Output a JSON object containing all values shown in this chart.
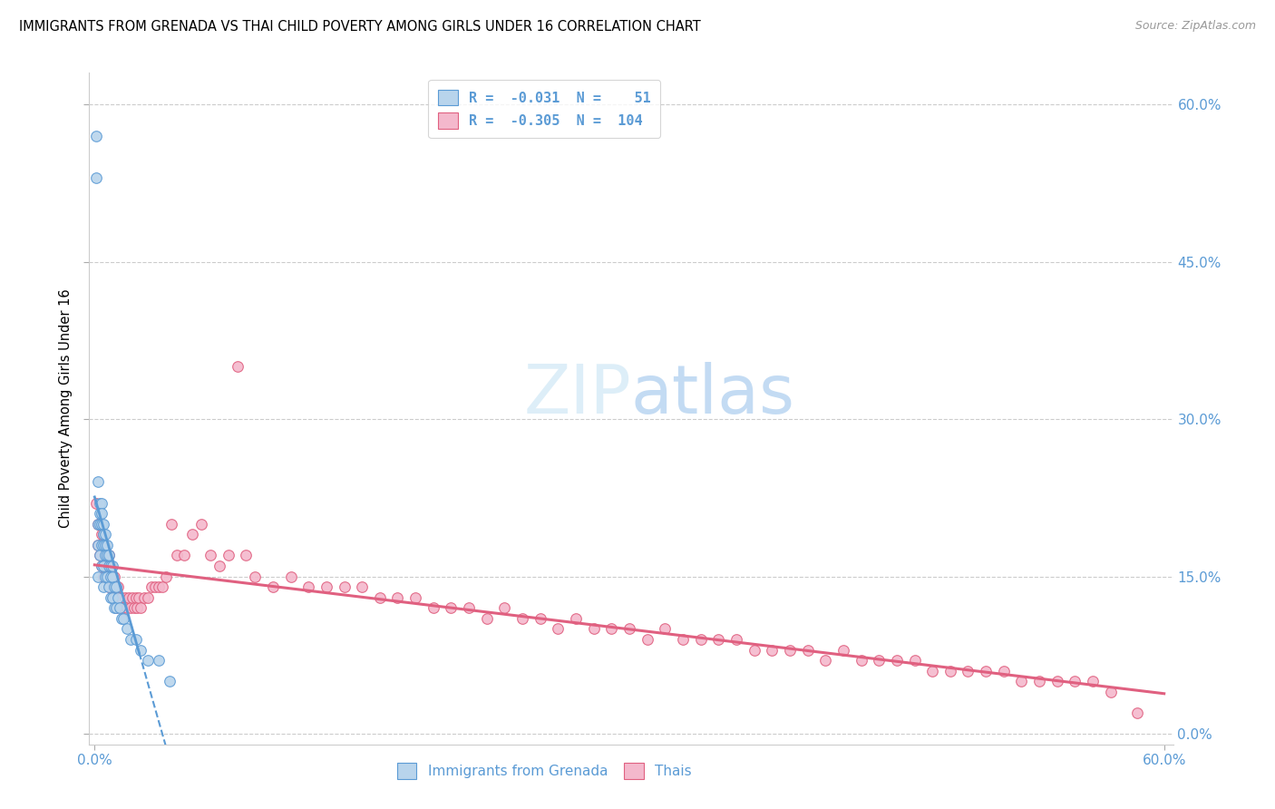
{
  "title": "IMMIGRANTS FROM GRENADA VS THAI CHILD POVERTY AMONG GIRLS UNDER 16 CORRELATION CHART",
  "source": "Source: ZipAtlas.com",
  "ylabel": "Child Poverty Among Girls Under 16",
  "xlim_min": -0.003,
  "xlim_max": 0.605,
  "ylim_min": -0.01,
  "ylim_max": 0.63,
  "yticks": [
    0.0,
    0.15,
    0.3,
    0.45,
    0.6
  ],
  "ytick_labels_right": [
    "0.0%",
    "15.0%",
    "30.0%",
    "45.0%",
    "60.0%"
  ],
  "xtick_vals": [
    0.0,
    0.6
  ],
  "xtick_labels": [
    "0.0%",
    "60.0%"
  ],
  "color_grenada_fill": "#b8d4ec",
  "color_grenada_edge": "#5b9bd5",
  "color_thais_fill": "#f4b8cc",
  "color_thais_edge": "#e06080",
  "color_grenada_line": "#5b9bd5",
  "color_thais_line": "#e06080",
  "watermark_color": "#ddeef8",
  "background_color": "#ffffff",
  "grenada_x": [
    0.001,
    0.001,
    0.002,
    0.002,
    0.002,
    0.002,
    0.003,
    0.003,
    0.003,
    0.003,
    0.004,
    0.004,
    0.004,
    0.004,
    0.004,
    0.005,
    0.005,
    0.005,
    0.005,
    0.005,
    0.006,
    0.006,
    0.006,
    0.006,
    0.007,
    0.007,
    0.007,
    0.008,
    0.008,
    0.008,
    0.009,
    0.009,
    0.009,
    0.01,
    0.01,
    0.01,
    0.011,
    0.011,
    0.012,
    0.012,
    0.013,
    0.014,
    0.015,
    0.016,
    0.018,
    0.02,
    0.023,
    0.026,
    0.03,
    0.036,
    0.042
  ],
  "grenada_y": [
    0.57,
    0.53,
    0.24,
    0.2,
    0.18,
    0.15,
    0.22,
    0.21,
    0.2,
    0.17,
    0.22,
    0.21,
    0.2,
    0.18,
    0.16,
    0.2,
    0.19,
    0.18,
    0.16,
    0.14,
    0.19,
    0.18,
    0.17,
    0.15,
    0.18,
    0.17,
    0.15,
    0.17,
    0.16,
    0.14,
    0.16,
    0.15,
    0.13,
    0.16,
    0.15,
    0.13,
    0.14,
    0.12,
    0.14,
    0.12,
    0.13,
    0.12,
    0.11,
    0.11,
    0.1,
    0.09,
    0.09,
    0.08,
    0.07,
    0.07,
    0.05
  ],
  "thais_x": [
    0.001,
    0.002,
    0.002,
    0.003,
    0.003,
    0.004,
    0.004,
    0.005,
    0.005,
    0.006,
    0.006,
    0.007,
    0.007,
    0.008,
    0.008,
    0.009,
    0.009,
    0.01,
    0.01,
    0.011,
    0.012,
    0.012,
    0.013,
    0.014,
    0.015,
    0.015,
    0.016,
    0.017,
    0.018,
    0.019,
    0.02,
    0.021,
    0.022,
    0.023,
    0.024,
    0.025,
    0.026,
    0.028,
    0.03,
    0.032,
    0.034,
    0.036,
    0.038,
    0.04,
    0.043,
    0.046,
    0.05,
    0.055,
    0.06,
    0.065,
    0.07,
    0.075,
    0.08,
    0.085,
    0.09,
    0.1,
    0.11,
    0.12,
    0.13,
    0.14,
    0.15,
    0.16,
    0.17,
    0.18,
    0.19,
    0.2,
    0.21,
    0.22,
    0.23,
    0.24,
    0.25,
    0.26,
    0.27,
    0.28,
    0.29,
    0.3,
    0.31,
    0.32,
    0.33,
    0.34,
    0.35,
    0.36,
    0.37,
    0.38,
    0.39,
    0.4,
    0.41,
    0.42,
    0.43,
    0.44,
    0.45,
    0.46,
    0.47,
    0.48,
    0.49,
    0.5,
    0.51,
    0.52,
    0.53,
    0.54,
    0.55,
    0.56,
    0.57,
    0.585
  ],
  "thais_y": [
    0.22,
    0.2,
    0.18,
    0.2,
    0.17,
    0.19,
    0.16,
    0.19,
    0.15,
    0.18,
    0.16,
    0.17,
    0.15,
    0.17,
    0.14,
    0.16,
    0.14,
    0.15,
    0.13,
    0.15,
    0.14,
    0.12,
    0.14,
    0.13,
    0.13,
    0.12,
    0.12,
    0.13,
    0.12,
    0.13,
    0.12,
    0.13,
    0.12,
    0.13,
    0.12,
    0.13,
    0.12,
    0.13,
    0.13,
    0.14,
    0.14,
    0.14,
    0.14,
    0.15,
    0.2,
    0.17,
    0.17,
    0.19,
    0.2,
    0.17,
    0.16,
    0.17,
    0.35,
    0.17,
    0.15,
    0.14,
    0.15,
    0.14,
    0.14,
    0.14,
    0.14,
    0.13,
    0.13,
    0.13,
    0.12,
    0.12,
    0.12,
    0.11,
    0.12,
    0.11,
    0.11,
    0.1,
    0.11,
    0.1,
    0.1,
    0.1,
    0.09,
    0.1,
    0.09,
    0.09,
    0.09,
    0.09,
    0.08,
    0.08,
    0.08,
    0.08,
    0.07,
    0.08,
    0.07,
    0.07,
    0.07,
    0.07,
    0.06,
    0.06,
    0.06,
    0.06,
    0.06,
    0.05,
    0.05,
    0.05,
    0.05,
    0.05,
    0.04,
    0.02
  ]
}
